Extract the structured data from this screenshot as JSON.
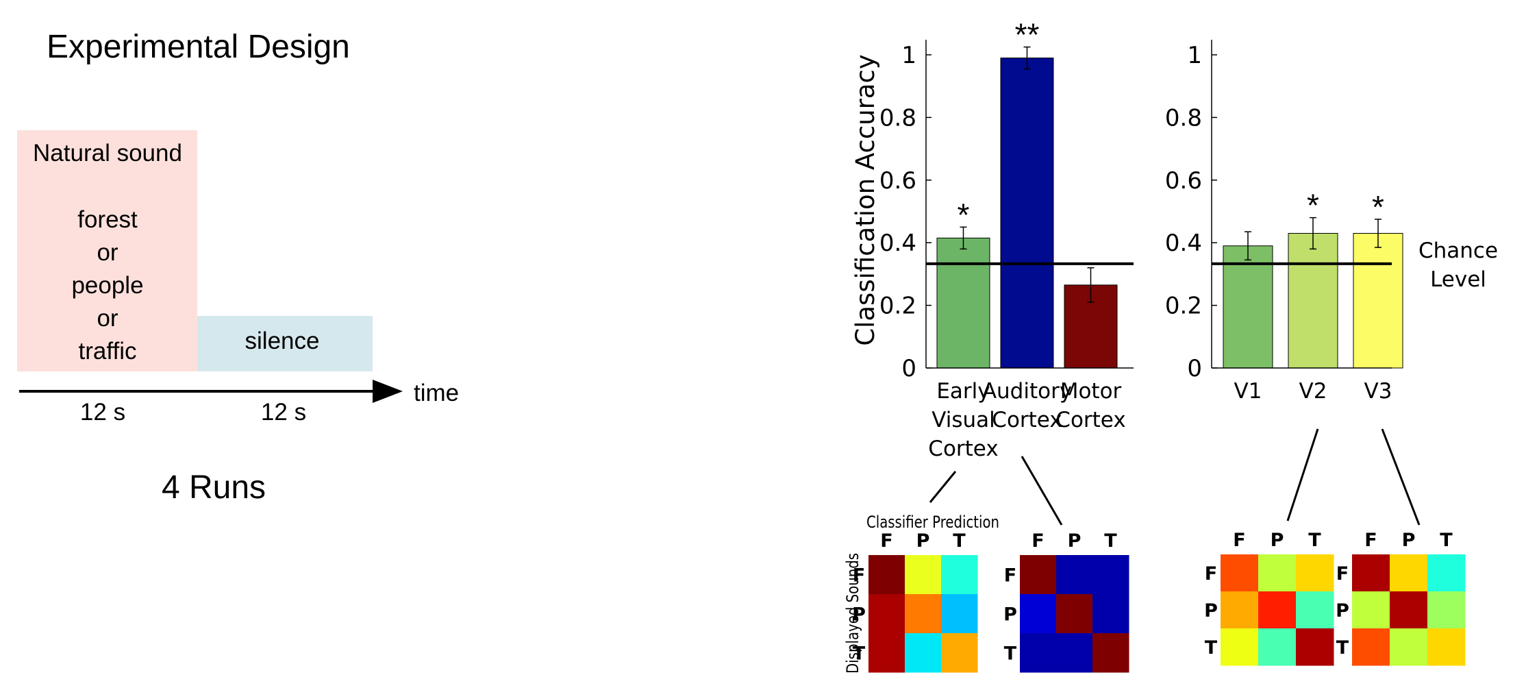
{
  "design": {
    "title": "Experimental Design",
    "sound_label": "Natural sound",
    "sound_options": [
      "forest",
      "or",
      "people",
      "or",
      "traffic"
    ],
    "silence_label": "silence",
    "time_label": "time",
    "durations": [
      "12 s",
      "12 s"
    ],
    "runs": "4 Runs",
    "colors": {
      "sound_box": "#fde0dc",
      "silence_box": "#d5e8ee"
    }
  },
  "chart_data": [
    {
      "type": "bar",
      "ylabel": "Classification Accuracy",
      "ylim": [
        0,
        1
      ],
      "yticks": [
        0,
        0.2,
        0.4,
        0.6,
        0.8,
        1
      ],
      "ytick_labels": [
        "0",
        "0.2",
        "0.4",
        "0.6",
        "0.8",
        "1"
      ],
      "chance_level": 0.333,
      "categories": [
        [
          "Early",
          "Visual",
          "Cortex"
        ],
        [
          "Auditory",
          "Cortex"
        ],
        [
          "Motor",
          "Cortex"
        ]
      ],
      "values": [
        0.415,
        0.99,
        0.265
      ],
      "errors": [
        0.035,
        0.035,
        0.055
      ],
      "significance": [
        "*",
        "**",
        ""
      ],
      "colors": [
        "#6db566",
        "#000b8f",
        "#7a0705"
      ]
    },
    {
      "type": "bar",
      "ylim": [
        0,
        1
      ],
      "yticks": [
        0,
        0.2,
        0.4,
        0.6,
        0.8,
        1
      ],
      "ytick_labels": [
        "0",
        "0.2",
        "0.4",
        "0.6",
        "0.8",
        "1"
      ],
      "chance_level": 0.333,
      "chance_label": [
        "Chance",
        "Level"
      ],
      "categories": [
        [
          "V1"
        ],
        [
          "V2"
        ],
        [
          "V3"
        ]
      ],
      "values": [
        0.39,
        0.43,
        0.43
      ],
      "errors": [
        0.045,
        0.05,
        0.045
      ],
      "significance": [
        "",
        "*",
        "*"
      ],
      "colors": [
        "#7dbf66",
        "#bfdf6a",
        "#fcfd66"
      ]
    }
  ],
  "matrices": {
    "title": "Classifier Prediction",
    "row_axis_label": "Displayed Sounds",
    "labels": [
      "F",
      "P",
      "T"
    ],
    "items": [
      {
        "name": "early-visual",
        "cells": [
          [
            "#7e0000",
            "#eaff1e",
            "#1fffdd"
          ],
          [
            "#aa0000",
            "#ff7a00",
            "#00bfff"
          ],
          [
            "#aa0000",
            "#00e8f6",
            "#ffaa00"
          ]
        ]
      },
      {
        "name": "auditory",
        "cells": [
          [
            "#7e0000",
            "#0000aa",
            "#0000aa"
          ],
          [
            "#0000d6",
            "#7e0000",
            "#0000aa"
          ],
          [
            "#0000aa",
            "#0000aa",
            "#7e0000"
          ]
        ]
      },
      {
        "name": "v2",
        "cells": [
          [
            "#ff4d00",
            "#bfff3c",
            "#ffd700"
          ],
          [
            "#ffaa00",
            "#ff1e00",
            "#48ffb2"
          ],
          [
            "#eeff14",
            "#48ffb2",
            "#aa0000"
          ]
        ]
      },
      {
        "name": "v3",
        "cells": [
          [
            "#aa0000",
            "#ffd700",
            "#1fffdd"
          ],
          [
            "#bfff3c",
            "#aa0000",
            "#9dff5d"
          ],
          [
            "#ff4d00",
            "#bfff3c",
            "#ffd700"
          ]
        ]
      }
    ]
  }
}
